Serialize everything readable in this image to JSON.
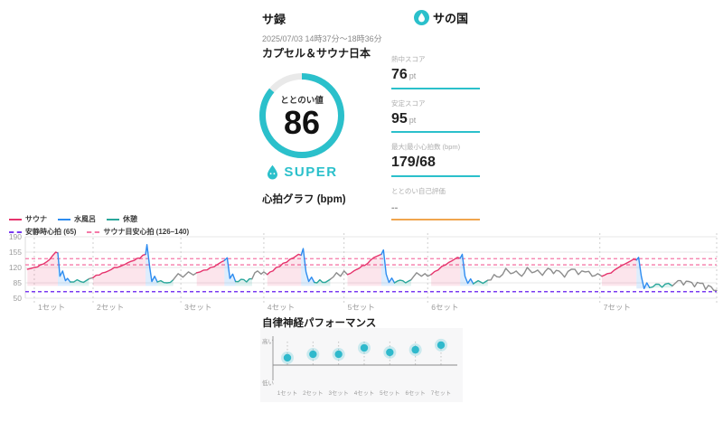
{
  "header": {
    "app_title": "サ録",
    "brand": "サの国"
  },
  "session": {
    "datetime": "2025/07/03 14時37分〜18時36分",
    "facility_name": "カプセル＆サウナ日本"
  },
  "totonoi": {
    "label": "ととのい値",
    "score": "86",
    "score_percent": 86,
    "rank_label": "SUPER"
  },
  "colors": {
    "accent": "#2bc0cb",
    "sauna": "#e6346d",
    "water": "#2d8cf0",
    "rest": "#2aa79b",
    "transition": "#8d8d8d",
    "resting_line": "#7a3bf0",
    "target_line": "#f57aa8",
    "orange": "#f0a54e",
    "ring_rest": "#e9e9e9"
  },
  "stats": [
    {
      "label": "熱中スコア",
      "value": "76",
      "unit": "pt",
      "underline": "#2bc0cb"
    },
    {
      "label": "安定スコア",
      "value": "95",
      "unit": "pt",
      "underline": "#2bc0cb"
    },
    {
      "label": "最大|最小心拍数 (bpm)",
      "value": "179/68",
      "unit": "",
      "underline": "#2bc0cb"
    },
    {
      "label": "ととのい自己評価",
      "value": "--",
      "unit": "",
      "underline": "#f0a54e"
    }
  ],
  "chart_data": [
    {
      "type": "line",
      "title": "心拍グラフ (bpm)",
      "ylim": [
        50,
        190
      ],
      "yticks": [
        50,
        85,
        120,
        155,
        190
      ],
      "legend": [
        {
          "label": "サウナ",
          "color": "#e6346d",
          "style": "solid"
        },
        {
          "label": "水風呂",
          "color": "#2d8cf0",
          "style": "solid"
        },
        {
          "label": "休憩",
          "color": "#2aa79b",
          "style": "solid"
        }
      ],
      "reference_legend": [
        {
          "label": "安静時心拍 (65)",
          "color": "#7a3bf0",
          "style": "dashed"
        },
        {
          "label": "サウナ目安心拍 (126–140)",
          "color": "#f57aa8",
          "style": "dashed"
        }
      ],
      "reference_lines": {
        "resting_bpm": 65,
        "target_low": 126,
        "target_high": 140
      },
      "sets": [
        {
          "label": "1セット",
          "x": 0.013
        },
        {
          "label": "2セット",
          "x": 0.098
        },
        {
          "label": "3セット",
          "x": 0.225
        },
        {
          "label": "4セット",
          "x": 0.345
        },
        {
          "label": "5セット",
          "x": 0.461
        },
        {
          "label": "6セット",
          "x": 0.582
        },
        {
          "label": "7セット",
          "x": 0.831
        },
        {
          "label": "",
          "x": 1.0
        }
      ],
      "segments": [
        {
          "type": "sauna",
          "points": [
            [
              0.003,
              116
            ],
            [
              0.013,
              120
            ],
            [
              0.022,
              126
            ],
            [
              0.031,
              133
            ],
            [
              0.039,
              146
            ],
            [
              0.044,
              155
            ],
            [
              0.047,
              153
            ]
          ]
        },
        {
          "type": "water",
          "points": [
            [
              0.047,
              153
            ],
            [
              0.05,
              100
            ],
            [
              0.054,
              112
            ],
            [
              0.058,
              90
            ],
            [
              0.061,
              95
            ],
            [
              0.065,
              87
            ]
          ]
        },
        {
          "type": "rest",
          "points": [
            [
              0.065,
              87
            ],
            [
              0.075,
              92
            ],
            [
              0.084,
              86
            ],
            [
              0.092,
              94
            ]
          ]
        },
        {
          "type": "transition",
          "points": [
            [
              0.092,
              94
            ],
            [
              0.098,
              97
            ]
          ]
        },
        {
          "type": "sauna",
          "points": [
            [
              0.098,
              97
            ],
            [
              0.107,
              103
            ],
            [
              0.12,
              112
            ],
            [
              0.133,
              120
            ],
            [
              0.144,
              127
            ],
            [
              0.153,
              134
            ],
            [
              0.162,
              141
            ],
            [
              0.17,
              148
            ],
            [
              0.174,
              150
            ]
          ]
        },
        {
          "type": "water",
          "points": [
            [
              0.174,
              150
            ],
            [
              0.176,
              172
            ],
            [
              0.18,
              120
            ],
            [
              0.183,
              88
            ],
            [
              0.187,
              100
            ],
            [
              0.191,
              87
            ]
          ]
        },
        {
          "type": "rest",
          "points": [
            [
              0.191,
              87
            ],
            [
              0.196,
              90
            ],
            [
              0.205,
              85
            ],
            [
              0.214,
              92
            ]
          ]
        },
        {
          "type": "transition",
          "points": [
            [
              0.214,
              92
            ],
            [
              0.221,
              106
            ],
            [
              0.228,
              98
            ],
            [
              0.236,
              110
            ],
            [
              0.243,
              103
            ],
            [
              0.248,
              108
            ]
          ]
        },
        {
          "type": "sauna",
          "points": [
            [
              0.248,
              108
            ],
            [
              0.258,
              114
            ],
            [
              0.268,
              120
            ],
            [
              0.278,
              127
            ],
            [
              0.284,
              133
            ],
            [
              0.288,
              136
            ]
          ]
        },
        {
          "type": "water",
          "points": [
            [
              0.288,
              136
            ],
            [
              0.292,
              142
            ],
            [
              0.296,
              95
            ],
            [
              0.3,
              105
            ],
            [
              0.304,
              88
            ]
          ]
        },
        {
          "type": "rest",
          "points": [
            [
              0.304,
              88
            ],
            [
              0.312,
              93
            ],
            [
              0.32,
              87
            ],
            [
              0.328,
              94
            ]
          ]
        },
        {
          "type": "transition",
          "points": [
            [
              0.328,
              94
            ],
            [
              0.336,
              112
            ],
            [
              0.341,
              105
            ],
            [
              0.345,
              110
            ],
            [
              0.35,
              104
            ]
          ]
        },
        {
          "type": "sauna",
          "points": [
            [
              0.35,
              104
            ],
            [
              0.358,
              112
            ],
            [
              0.368,
              122
            ],
            [
              0.378,
              132
            ],
            [
              0.388,
              142
            ],
            [
              0.395,
              150
            ],
            [
              0.399,
              148
            ]
          ]
        },
        {
          "type": "water",
          "points": [
            [
              0.399,
              148
            ],
            [
              0.402,
              163
            ],
            [
              0.406,
              110
            ],
            [
              0.41,
              88
            ],
            [
              0.414,
              98
            ],
            [
              0.418,
              86
            ]
          ]
        },
        {
          "type": "rest",
          "points": [
            [
              0.418,
              86
            ],
            [
              0.426,
              92
            ],
            [
              0.434,
              86
            ],
            [
              0.441,
              93
            ]
          ]
        },
        {
          "type": "transition",
          "points": [
            [
              0.441,
              93
            ],
            [
              0.45,
              108
            ],
            [
              0.456,
              100
            ],
            [
              0.461,
              112
            ],
            [
              0.466,
              104
            ]
          ]
        },
        {
          "type": "sauna",
          "points": [
            [
              0.466,
              104
            ],
            [
              0.475,
              112
            ],
            [
              0.487,
              124
            ],
            [
              0.499,
              136
            ],
            [
              0.509,
              146
            ],
            [
              0.515,
              150
            ]
          ]
        },
        {
          "type": "water",
          "points": [
            [
              0.515,
              150
            ],
            [
              0.518,
              160
            ],
            [
              0.522,
              105
            ],
            [
              0.526,
              86
            ],
            [
              0.53,
              96
            ],
            [
              0.534,
              85
            ]
          ]
        },
        {
          "type": "rest",
          "points": [
            [
              0.534,
              85
            ],
            [
              0.542,
              91
            ],
            [
              0.55,
              85
            ],
            [
              0.558,
              92
            ]
          ]
        },
        {
          "type": "transition",
          "points": [
            [
              0.558,
              92
            ],
            [
              0.566,
              108
            ],
            [
              0.573,
              100
            ],
            [
              0.578,
              106
            ],
            [
              0.582,
              100
            ],
            [
              0.587,
              104
            ]
          ]
        },
        {
          "type": "sauna",
          "points": [
            [
              0.587,
              104
            ],
            [
              0.597,
              114
            ],
            [
              0.608,
              126
            ],
            [
              0.618,
              136
            ],
            [
              0.625,
              143
            ],
            [
              0.629,
              141
            ]
          ]
        },
        {
          "type": "water",
          "points": [
            [
              0.629,
              141
            ],
            [
              0.632,
              150
            ],
            [
              0.636,
              100
            ],
            [
              0.64,
              84
            ],
            [
              0.644,
              94
            ],
            [
              0.648,
              83
            ]
          ]
        },
        {
          "type": "rest",
          "points": [
            [
              0.648,
              83
            ],
            [
              0.655,
              90
            ],
            [
              0.662,
              84
            ],
            [
              0.669,
              91
            ]
          ]
        },
        {
          "type": "transition",
          "points": [
            [
              0.669,
              91
            ],
            [
              0.678,
              104
            ],
            [
              0.686,
              98
            ],
            [
              0.695,
              118
            ],
            [
              0.702,
              106
            ],
            [
              0.71,
              112
            ],
            [
              0.718,
              100
            ],
            [
              0.726,
              120
            ],
            [
              0.733,
              108
            ],
            [
              0.741,
              114
            ],
            [
              0.748,
              102
            ],
            [
              0.756,
              118
            ],
            [
              0.764,
              106
            ],
            [
              0.772,
              112
            ],
            [
              0.78,
              98
            ],
            [
              0.79,
              116
            ],
            [
              0.8,
              104
            ],
            [
              0.81,
              110
            ],
            [
              0.82,
              100
            ],
            [
              0.828,
              106
            ],
            [
              0.834,
              100
            ]
          ]
        },
        {
          "type": "sauna",
          "points": [
            [
              0.834,
              100
            ],
            [
              0.842,
              106
            ],
            [
              0.852,
              114
            ],
            [
              0.862,
              124
            ],
            [
              0.872,
              132
            ],
            [
              0.88,
              139
            ],
            [
              0.884,
              137
            ]
          ]
        },
        {
          "type": "water",
          "points": [
            [
              0.884,
              137
            ],
            [
              0.887,
              143
            ],
            [
              0.891,
              100
            ],
            [
              0.895,
              72
            ],
            [
              0.899,
              85
            ],
            [
              0.903,
              74
            ]
          ]
        },
        {
          "type": "rest",
          "points": [
            [
              0.903,
              74
            ],
            [
              0.912,
              82
            ],
            [
              0.921,
              75
            ],
            [
              0.93,
              84
            ],
            [
              0.936,
              78
            ]
          ]
        },
        {
          "type": "transition",
          "points": [
            [
              0.936,
              78
            ],
            [
              0.944,
              90
            ],
            [
              0.952,
              80
            ],
            [
              0.96,
              88
            ],
            [
              0.968,
              76
            ],
            [
              0.976,
              84
            ],
            [
              0.984,
              70
            ],
            [
              0.992,
              76
            ],
            [
              1.0,
              68
            ]
          ]
        }
      ]
    },
    {
      "type": "lollipop",
      "title": "自律神経パフォーマンス",
      "ylabel_top": "高い",
      "ylabel_bottom": "低い",
      "categories": [
        "1セット",
        "2セット",
        "3セット",
        "4セット",
        "5セット",
        "6セット",
        "7セット"
      ],
      "values": [
        0.31,
        0.46,
        0.46,
        0.73,
        0.54,
        0.65,
        0.85
      ],
      "dot_color": "#2fb9cc"
    }
  ]
}
